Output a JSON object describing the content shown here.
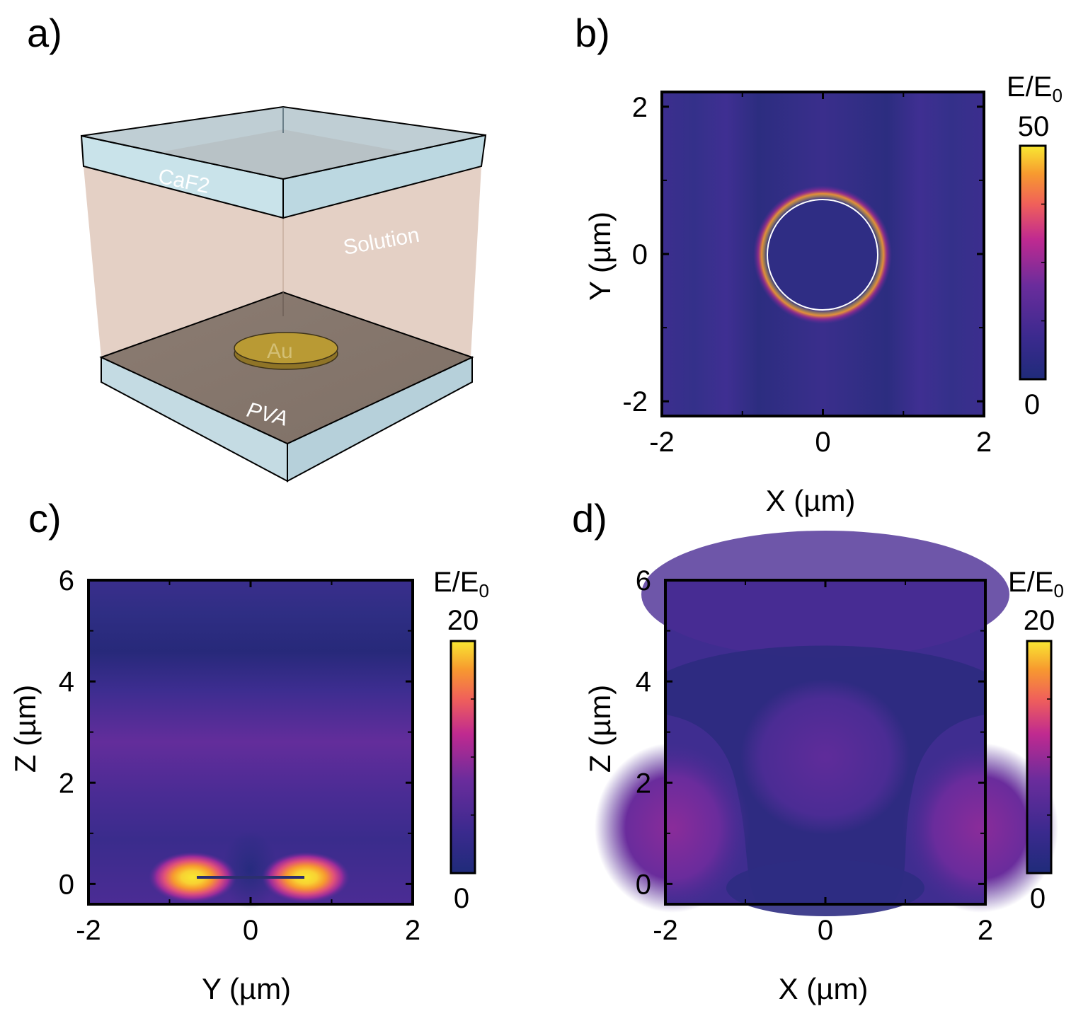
{
  "panel_labels": [
    "a)",
    "b)",
    "c)",
    "d)"
  ],
  "diagram": {
    "top_window_label": "CaF2",
    "medium_label": "Solution",
    "disk_label": "Au",
    "bottom_layer_label": "PVA",
    "colors": {
      "window": "#c9e3ea",
      "solution": "#e6d2c6",
      "pva": "#8e7f74",
      "gold": "#b9982f"
    }
  },
  "colormap": {
    "name": "plasma-like",
    "stops": [
      "#1f2b7a",
      "#3b2a8e",
      "#6a2c9c",
      "#c02a90",
      "#f0605a",
      "#f79a2f",
      "#f8e832"
    ]
  },
  "chart_data": [
    {
      "id": "b",
      "type": "heatmap",
      "title": "",
      "xlabel": "X (µm)",
      "ylabel": "Y (µm)",
      "xlim": [
        -2,
        2
      ],
      "ylim": [
        -2.2,
        2.2
      ],
      "xticks": [
        -2,
        0,
        2
      ],
      "xtick_labels": [
        "-2",
        "0",
        "2"
      ],
      "yticks": [
        -2,
        0,
        2
      ],
      "ytick_labels": [
        "-2",
        "0",
        "2"
      ],
      "colorbar": {
        "label": "E/E",
        "label_sub": "0",
        "min": 0,
        "max": 50,
        "max_label": "50",
        "min_label": "0"
      },
      "features": {
        "disk_radius_um": 0.7,
        "hotspot_max": 50,
        "background_level": 4
      }
    },
    {
      "id": "c",
      "type": "heatmap",
      "title": "",
      "xlabel": "Y (µm)",
      "ylabel": "Z (µm)",
      "xlim": [
        -2,
        2
      ],
      "ylim": [
        -0.4,
        6.0
      ],
      "xticks": [
        -2,
        0,
        2
      ],
      "xtick_labels": [
        "-2",
        "0",
        "2"
      ],
      "yticks": [
        0,
        2,
        4,
        6
      ],
      "ytick_labels": [
        "0",
        "2",
        "4",
        "6"
      ],
      "colorbar": {
        "label": "E/E",
        "label_sub": "0",
        "min": 0,
        "max": 20,
        "max_label": "20",
        "min_label": "0"
      },
      "features": {
        "disk_edges_um": [
          -0.7,
          0.7
        ],
        "disk_z_um": 0,
        "hotspot_max": 20
      }
    },
    {
      "id": "d",
      "type": "heatmap",
      "title": "",
      "xlabel": "X (µm)",
      "ylabel": "Z (µm)",
      "xlim": [
        -2,
        2
      ],
      "ylim": [
        -0.4,
        6.0
      ],
      "xticks": [
        -2,
        0,
        2
      ],
      "xtick_labels": [
        "-2",
        "0",
        "2"
      ],
      "yticks": [
        0,
        2,
        4,
        6
      ],
      "ytick_labels": [
        "0",
        "2",
        "4",
        "6"
      ],
      "colorbar": {
        "label": "E/E",
        "label_sub": "0",
        "min": 0,
        "max": 20,
        "max_label": "20",
        "min_label": "0"
      },
      "features": {
        "corner_lobe_level": 6,
        "background_level": 3
      }
    }
  ]
}
